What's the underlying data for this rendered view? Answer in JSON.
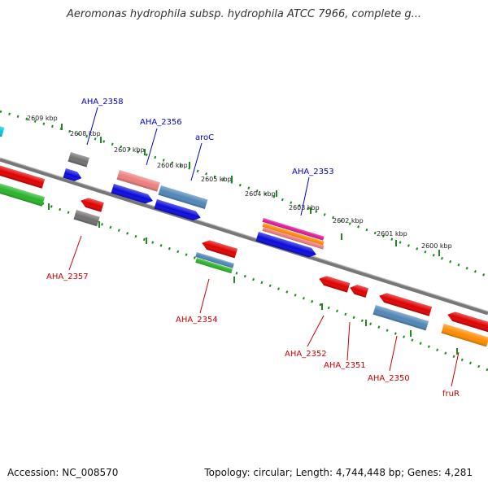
{
  "title": "Aeromonas hydrophila subsp. hydrophila ATCC 7966, complete g...",
  "footer": {
    "accession": "Accession: NC_008570",
    "summary": "Topology: circular; Length: 4,744,448 bp; Genes: 4,281"
  },
  "colors": {
    "backbone": "#777777",
    "ruler_tick": "#1e8a1e",
    "upper_label": "#0000cc",
    "lower_label": "#cc0000",
    "red": "#e00000",
    "blue": "#0a0adc",
    "steelblue": "#4f86b7",
    "gray": "#707070",
    "green": "#28b428",
    "salmon": "#ee7d7d",
    "orange": "#ff8c00",
    "magenta": "#e0189a",
    "cyan": "#00c8d8"
  },
  "ruler_labels": [
    "2609 kbp",
    "2608 kbp",
    "2607 kbp",
    "2606 kbp",
    "2605 kbp",
    "2604 kbp",
    "2603 kbp",
    "2602 kbp",
    "2601 kbp",
    "2600 kbp"
  ],
  "upper_gene_labels": [
    "AHA_2358",
    "AHA_2356",
    "aroC",
    "AHA_2353"
  ],
  "lower_gene_labels": [
    "AHA_2357",
    "AHA_2354",
    "AHA_2352",
    "AHA_2351",
    "AHA_2350",
    "fruR"
  ]
}
